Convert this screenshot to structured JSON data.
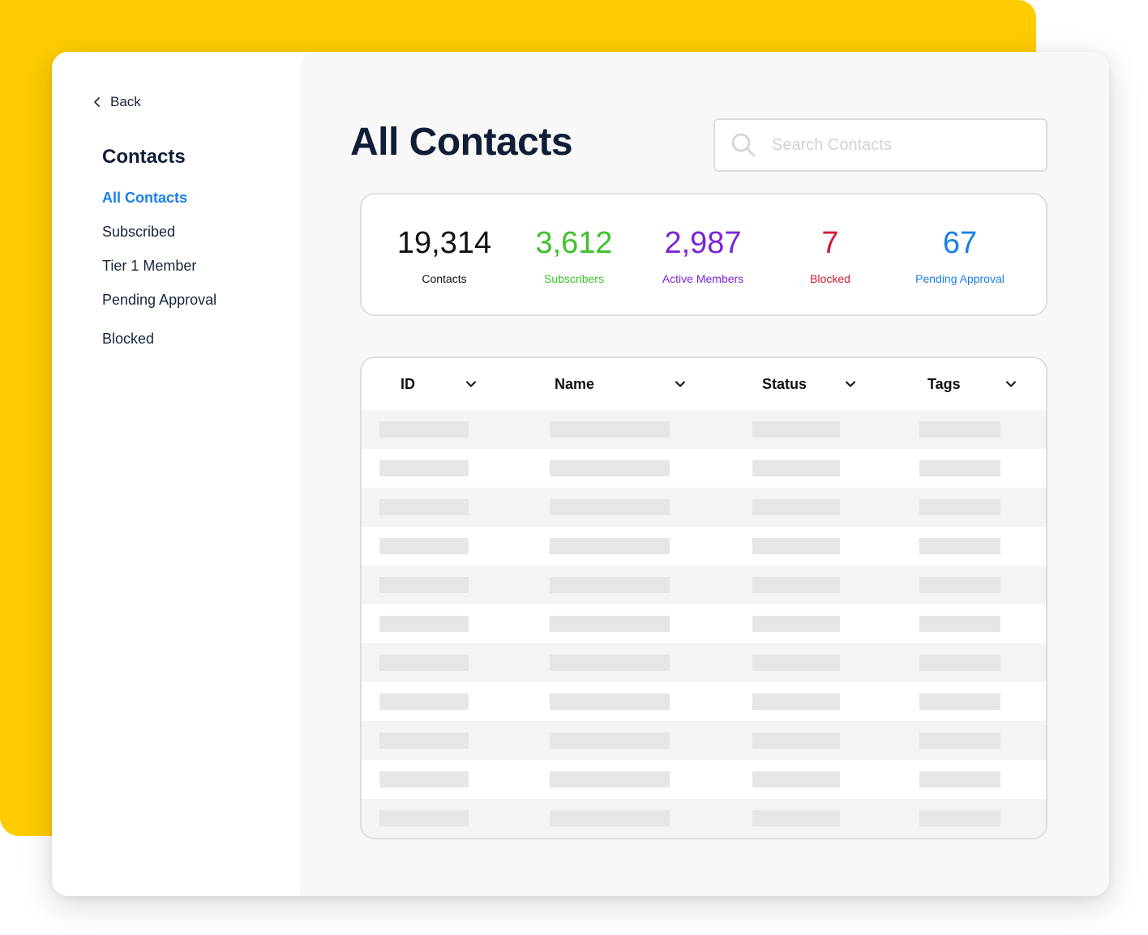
{
  "sidebar": {
    "back_label": "Back",
    "section_title": "Contacts",
    "items": [
      {
        "label": "All Contacts",
        "active": true
      },
      {
        "label": "Subscribed",
        "active": false
      },
      {
        "label": "Tier 1 Member",
        "active": false
      },
      {
        "label": "Pending Approval",
        "active": false
      },
      {
        "label": "Blocked",
        "active": false
      }
    ]
  },
  "header": {
    "title": "All Contacts",
    "search_placeholder": "Search Contacts"
  },
  "stats": [
    {
      "value": "19,314",
      "label": "Contacts",
      "color": "#111111"
    },
    {
      "value": "3,612",
      "label": "Subscribers",
      "color": "#3dc22b"
    },
    {
      "value": "2,987",
      "label": "Active Members",
      "color": "#7a25d6"
    },
    {
      "value": "7",
      "label": "Blocked",
      "color": "#d21a34"
    },
    {
      "value": "67",
      "label": "Pending Approval",
      "color": "#1a7fe6"
    }
  ],
  "table": {
    "columns": [
      "ID",
      "Name",
      "Status",
      "Tags"
    ],
    "row_count": 11
  },
  "colors": {
    "accent": "#FFCC00",
    "active_nav": "#1a7fe6",
    "title": "#0f1e36",
    "skeleton": "#e6e6e6"
  }
}
